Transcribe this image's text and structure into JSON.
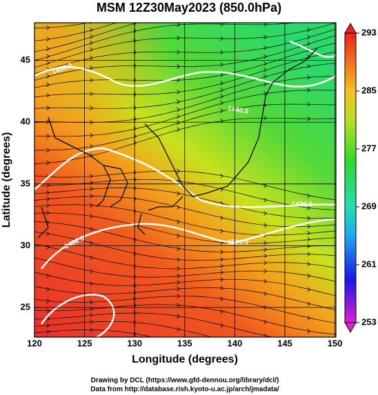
{
  "title": "MSM 12Z30May2023 (850.0hPa)",
  "xaxis": {
    "label": "Longitude (degrees)",
    "lim": [
      120,
      150.1
    ],
    "ticks": [
      120,
      125,
      130,
      135,
      140,
      145,
      150
    ]
  },
  "yaxis": {
    "label": "Latitude  (degrees)",
    "lim": [
      22.6,
      48.05
    ],
    "ticks": [
      25,
      30,
      35,
      40,
      45
    ]
  },
  "colorbar": {
    "lim": [
      253,
      293
    ],
    "ticks": [
      293,
      285,
      277,
      269,
      261,
      253
    ]
  },
  "contour_labels": [
    "1480.0",
    "1440.0",
    "1480.0",
    "1480.0",
    "1520.0"
  ],
  "credits": [
    "Drawing by DCL (https://www.gfd-dennou.org/library/dcl/)",
    "Data from http://database.rish.kyoto-u.ac.jp/arch/jmadata/"
  ]
}
